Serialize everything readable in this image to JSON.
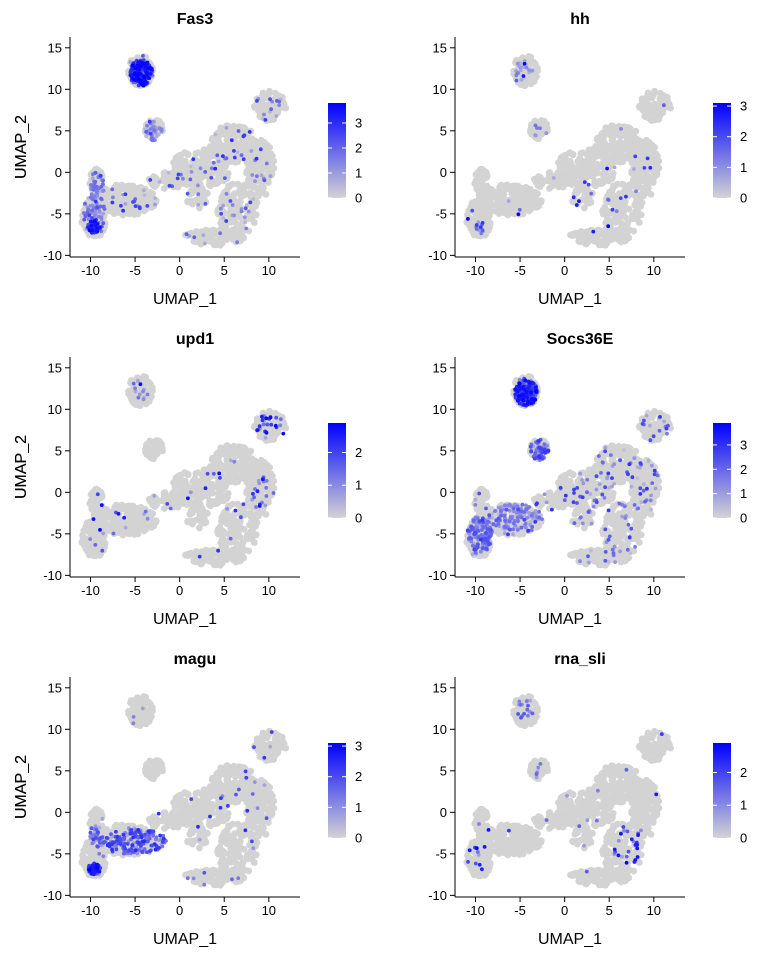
{
  "chart_data": {
    "type": "scatter",
    "description": "UMAP feature plots",
    "base_color": "#d3d3d3",
    "high_color": "#0000ff",
    "xlabel": "UMAP_1",
    "ylabel": "UMAP_2",
    "x_ticks": [
      -10,
      -5,
      0,
      5,
      10
    ],
    "y_ticks": [
      -10,
      -5,
      0,
      5,
      10,
      15
    ],
    "xlim": [
      -12.3,
      13.5
    ],
    "ylim": [
      -10.2,
      16.3
    ],
    "panels": [
      {
        "title": "Fas3",
        "legend": {
          "max": 3.8,
          "ticks": [
            0,
            1,
            2,
            3
          ]
        },
        "hotspots": [
          {
            "cx": -4.3,
            "cy": 12.0,
            "rx": 1.3,
            "ry": 1.6,
            "n": 220,
            "min": 1.6,
            "max": 3.8
          },
          {
            "cx": -9.6,
            "cy": -6.6,
            "rx": 0.7,
            "ry": 0.8,
            "n": 60,
            "min": 1.5,
            "max": 3.8
          },
          {
            "cx": -9.5,
            "cy": -4.5,
            "rx": 1.3,
            "ry": 1.8,
            "n": 60,
            "min": 0.3,
            "max": 2.0
          },
          {
            "cx": -9.3,
            "cy": -1.5,
            "rx": 0.9,
            "ry": 1.5,
            "n": 40,
            "min": 0.3,
            "max": 2.0
          },
          {
            "cx": -3.0,
            "cy": 5.0,
            "rx": 1.0,
            "ry": 1.2,
            "n": 35,
            "min": 0.3,
            "max": 1.8
          }
        ],
        "scatter": {
          "n": 150,
          "min": 0.4,
          "max": 3.0
        }
      },
      {
        "title": "hh",
        "legend": {
          "max": 3.1,
          "ticks": [
            0,
            1,
            2,
            3
          ]
        },
        "hotspots": [
          {
            "cx": -4.5,
            "cy": 12.3,
            "rx": 1.0,
            "ry": 1.3,
            "n": 20,
            "min": 0.3,
            "max": 1.5
          },
          {
            "cx": -9.6,
            "cy": -6.6,
            "rx": 0.6,
            "ry": 0.7,
            "n": 12,
            "min": 0.5,
            "max": 2.5
          },
          {
            "cx": -2.8,
            "cy": 5.0,
            "rx": 0.8,
            "ry": 1.0,
            "n": 6,
            "min": 0.3,
            "max": 1.5
          }
        ],
        "scatter": {
          "n": 35,
          "min": 0.5,
          "max": 3.1
        }
      },
      {
        "title": "upd1",
        "legend": {
          "max": 2.9,
          "ticks": [
            0,
            1,
            2
          ]
        },
        "hotspots": [
          {
            "cx": -4.5,
            "cy": 12.3,
            "rx": 1.0,
            "ry": 1.3,
            "n": 10,
            "min": 0.3,
            "max": 1.5
          },
          {
            "cx": 10.0,
            "cy": 8.0,
            "rx": 1.5,
            "ry": 1.5,
            "n": 20,
            "min": 0.5,
            "max": 2.9
          },
          {
            "cx": 9.0,
            "cy": 0.0,
            "rx": 1.0,
            "ry": 2.0,
            "n": 15,
            "min": 0.5,
            "max": 2.9
          }
        ],
        "scatter": {
          "n": 50,
          "min": 0.5,
          "max": 2.9
        }
      },
      {
        "title": "Socs36E",
        "legend": {
          "max": 3.9,
          "ticks": [
            0,
            1,
            2,
            3
          ]
        },
        "hotspots": [
          {
            "cx": -4.3,
            "cy": 12.0,
            "rx": 1.3,
            "ry": 1.6,
            "n": 200,
            "min": 1.5,
            "max": 3.9
          },
          {
            "cx": -2.8,
            "cy": 5.0,
            "rx": 1.0,
            "ry": 1.2,
            "n": 50,
            "min": 0.5,
            "max": 3.0
          },
          {
            "cx": -9.5,
            "cy": -5.0,
            "rx": 1.4,
            "ry": 2.2,
            "n": 150,
            "min": 0.4,
            "max": 2.5
          },
          {
            "cx": -5.5,
            "cy": -3.0,
            "rx": 3.0,
            "ry": 1.6,
            "n": 120,
            "min": 0.3,
            "max": 2.0
          }
        ],
        "scatter": {
          "n": 220,
          "min": 0.3,
          "max": 3.0
        }
      },
      {
        "title": "magu",
        "legend": {
          "max": 3.1,
          "ticks": [
            0,
            1,
            2,
            3
          ]
        },
        "hotspots": [
          {
            "cx": -9.6,
            "cy": -6.8,
            "rx": 0.7,
            "ry": 0.7,
            "n": 60,
            "min": 1.8,
            "max": 3.1
          },
          {
            "cx": -5.0,
            "cy": -3.5,
            "rx": 3.5,
            "ry": 1.6,
            "n": 180,
            "min": 0.5,
            "max": 2.5
          },
          {
            "cx": -9.3,
            "cy": -3.0,
            "rx": 1.0,
            "ry": 1.5,
            "n": 40,
            "min": 0.5,
            "max": 2.0
          }
        ],
        "scatter": {
          "n": 50,
          "min": 0.5,
          "max": 2.5
        }
      },
      {
        "title": "rna_sli",
        "legend": {
          "max": 2.9,
          "ticks": [
            0,
            1,
            2
          ]
        },
        "hotspots": [
          {
            "cx": -4.4,
            "cy": 12.5,
            "rx": 1.0,
            "ry": 1.3,
            "n": 15,
            "min": 0.4,
            "max": 1.8
          },
          {
            "cx": 7.0,
            "cy": -4.0,
            "rx": 1.5,
            "ry": 2.5,
            "n": 20,
            "min": 0.5,
            "max": 2.9
          },
          {
            "cx": -2.8,
            "cy": 5.0,
            "rx": 0.8,
            "ry": 1.0,
            "n": 6,
            "min": 0.3,
            "max": 1.5
          }
        ],
        "scatter": {
          "n": 30,
          "min": 0.5,
          "max": 2.9
        }
      }
    ]
  }
}
